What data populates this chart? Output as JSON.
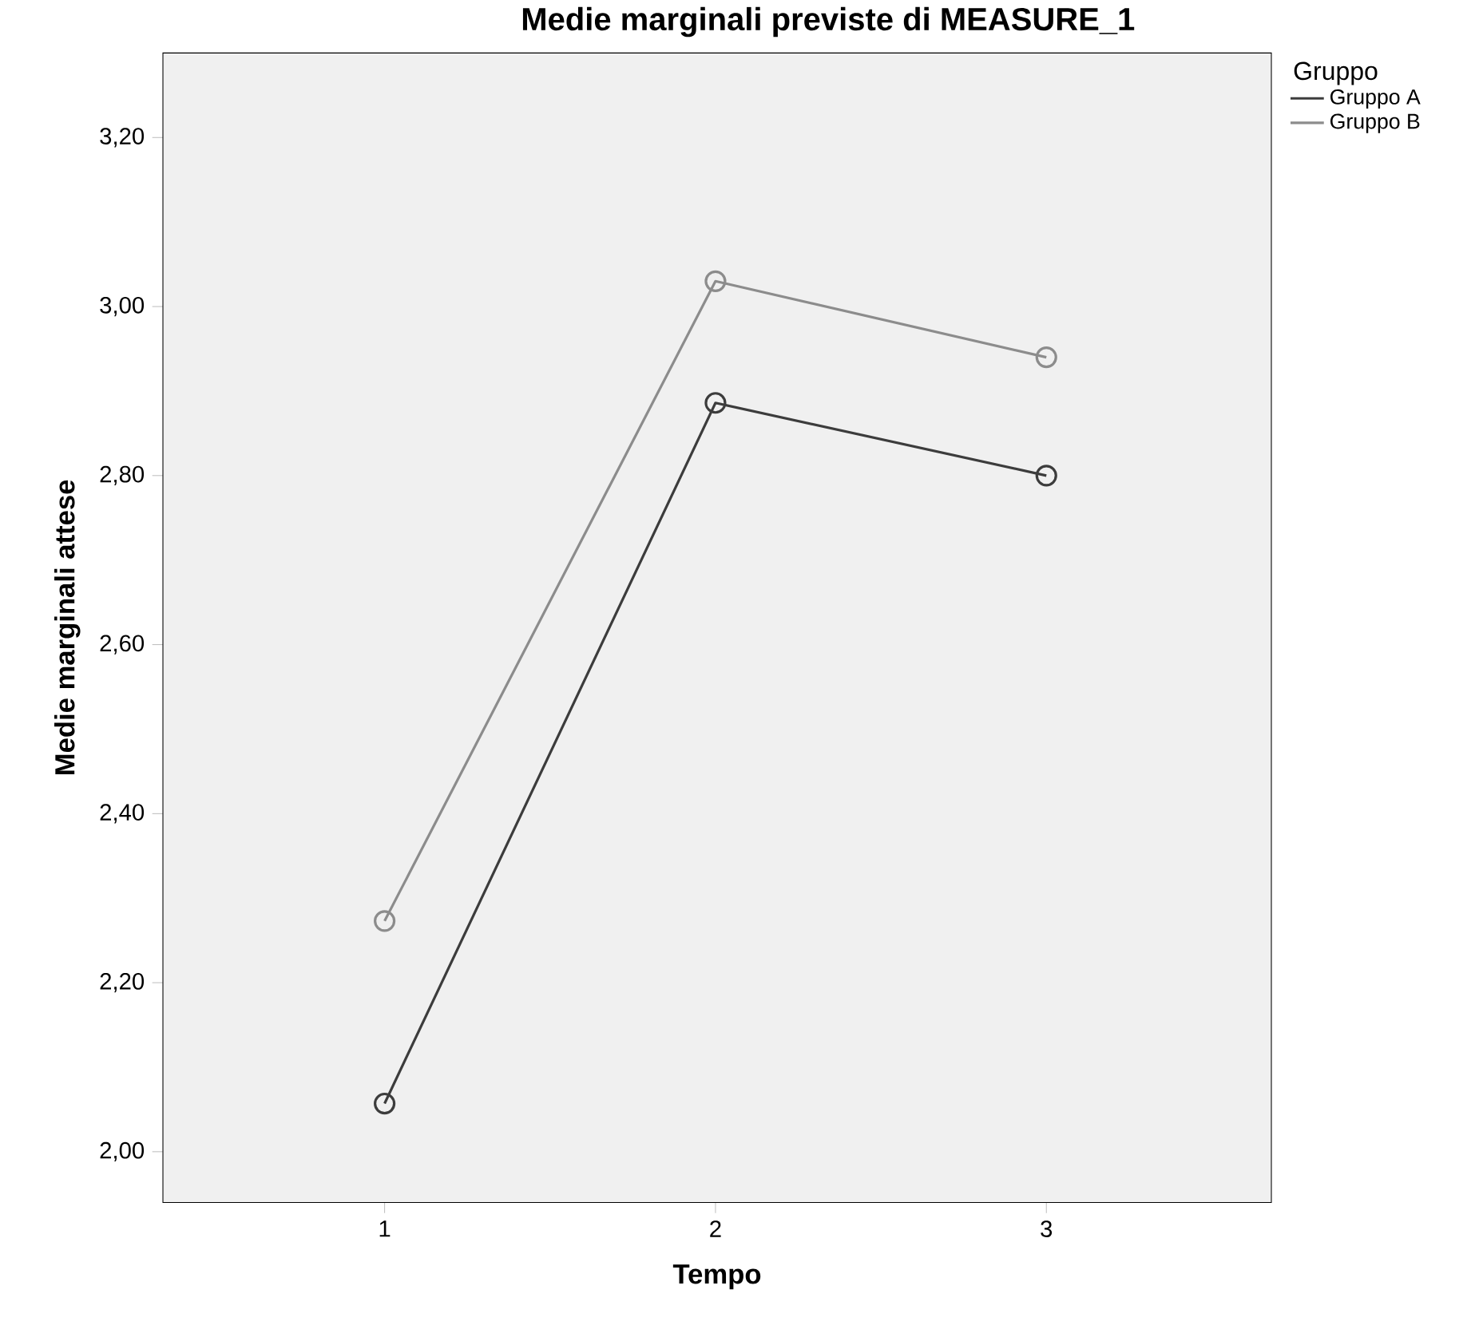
{
  "chart_data": {
    "type": "line",
    "title": "Medie marginali previste di MEASURE_1",
    "xlabel": "Tempo",
    "ylabel": "Medie marginali attese",
    "legend_title": "Gruppo",
    "x": [
      1,
      2,
      3
    ],
    "series": [
      {
        "name": "Gruppo A",
        "color": "#3c3c3c",
        "values": [
          2.057,
          2.886,
          2.8
        ]
      },
      {
        "name": "Gruppo B",
        "color": "#8c8c8c",
        "values": [
          2.273,
          3.03,
          2.94
        ]
      }
    ],
    "xlim": [
      0.33,
      3.68
    ],
    "xticks": [
      1,
      2,
      3
    ],
    "ylim": [
      1.94,
      3.3
    ],
    "yticks": [
      {
        "value": 2.0,
        "label": "2,00"
      },
      {
        "value": 2.2,
        "label": "2,20"
      },
      {
        "value": 2.4,
        "label": "2,40"
      },
      {
        "value": 2.6,
        "label": "2,60"
      },
      {
        "value": 2.8,
        "label": "2,80"
      },
      {
        "value": 3.0,
        "label": "3,00"
      },
      {
        "value": 3.2,
        "label": "3,20"
      }
    ],
    "grid": false,
    "legend": "top right",
    "marker": "circle",
    "line_style": "solid"
  }
}
